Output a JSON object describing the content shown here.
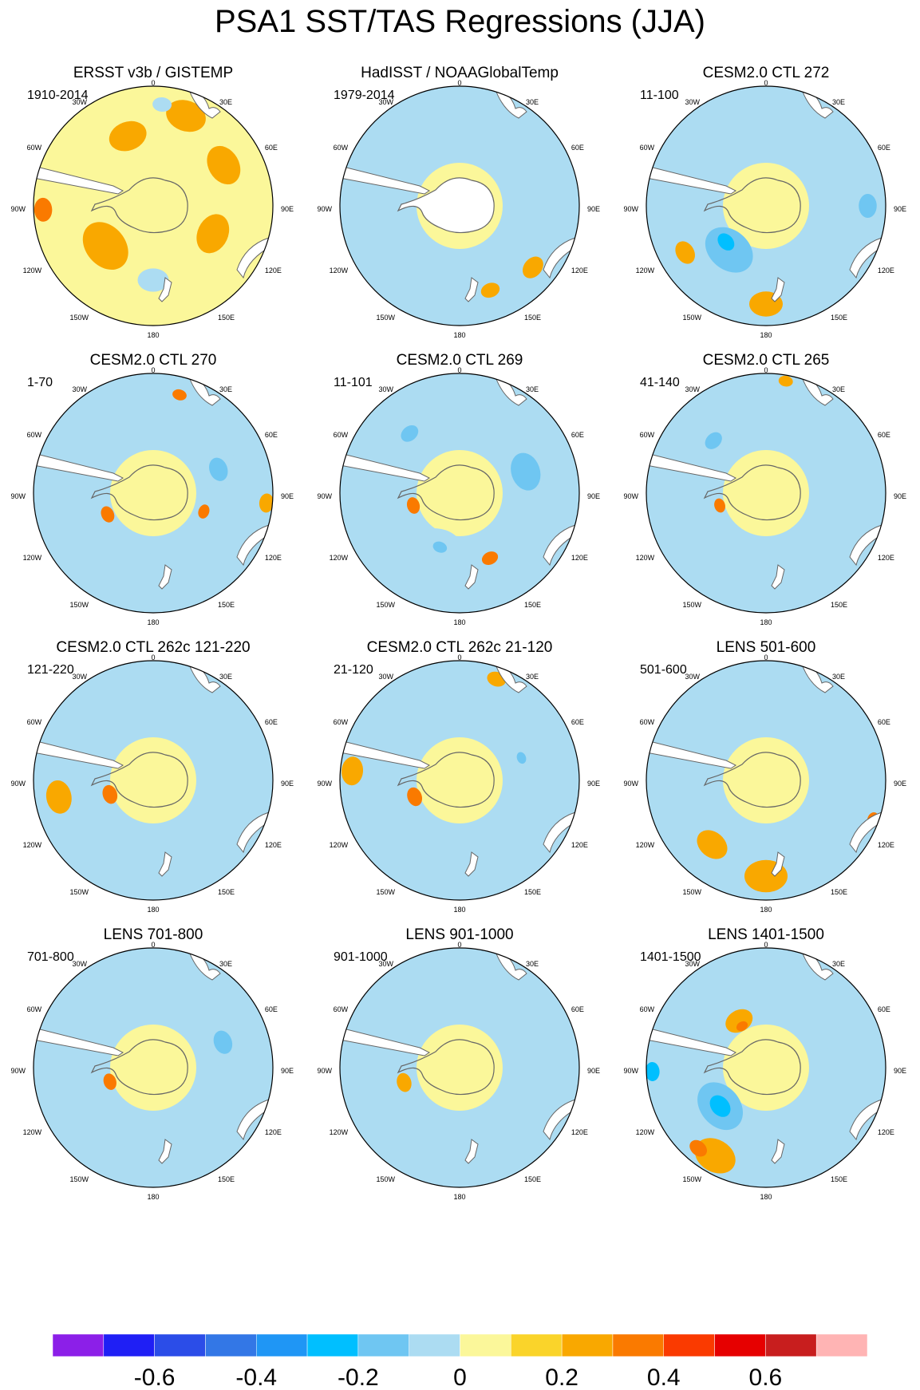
{
  "figure": {
    "title": "PSA1 SST/TAS Regressions (JJA)"
  },
  "chart_data": {
    "type": "heatmap",
    "projection": "south-polar-stereographic",
    "variable": "SST/TAS regression on PSA1 index",
    "season": "JJA",
    "longitude_labels": [
      "0",
      "30E",
      "60E",
      "90E",
      "120E",
      "150E",
      "180",
      "150W",
      "120W",
      "90W",
      "60W",
      "30W"
    ],
    "colorbar": {
      "tick_labels": [
        "-0.6",
        "-0.4",
        "-0.2",
        "0",
        "0.2",
        "0.4",
        "0.6"
      ],
      "tick_values": [
        -0.6,
        -0.4,
        -0.2,
        0,
        0.2,
        0.4,
        0.6
      ],
      "levels": [
        -0.7,
        -0.6,
        -0.5,
        -0.4,
        -0.3,
        -0.2,
        -0.1,
        0,
        0.1,
        0.2,
        0.3,
        0.4,
        0.5,
        0.6,
        0.7
      ],
      "colors": [
        "#8c1fe8",
        "#1f1ff5",
        "#2b4de8",
        "#3377e6",
        "#1f96f5",
        "#00bfff",
        "#6fc6f2",
        "#acdcf2",
        "#fbf79a",
        "#fad42a",
        "#f9a800",
        "#fa7a00",
        "#fa3a00",
        "#e60000",
        "#c81e1e",
        "#ffb4b4"
      ]
    },
    "panels": [
      {
        "title": "ERSST v3b / GISTEMP",
        "period": "1910-2014",
        "pattern": "warm",
        "masked_antarctica": false,
        "features": [
          {
            "lon": 20,
            "r": 0.8,
            "size": 0.17,
            "value": 0.2
          },
          {
            "lon": 60,
            "r": 0.68,
            "size": 0.17,
            "value": 0.2
          },
          {
            "lon": 115,
            "r": 0.55,
            "size": 0.17,
            "value": 0.2
          },
          {
            "lon": 230,
            "r": 0.52,
            "size": 0.22,
            "value": 0.2
          },
          {
            "lon": 268,
            "r": 0.92,
            "size": 0.1,
            "value": 0.3
          },
          {
            "lon": 340,
            "r": 0.62,
            "size": 0.16,
            "value": 0.2
          },
          {
            "lon": 180,
            "r": 0.62,
            "size": 0.13,
            "value": -0.1
          },
          {
            "lon": 5,
            "r": 0.85,
            "size": 0.08,
            "value": -0.1
          }
        ]
      },
      {
        "title": "HadISST / NOAAGlobalTemp",
        "period": "1979-2014",
        "pattern": "mixed",
        "masked_antarctica": true,
        "features": [
          {
            "lon": 350,
            "r": 0.6,
            "size": 0.2,
            "value": -0.1
          },
          {
            "lon": 40,
            "r": 0.55,
            "size": 0.18,
            "value": -0.1
          },
          {
            "lon": 100,
            "r": 0.72,
            "size": 0.18,
            "value": -0.1
          },
          {
            "lon": 200,
            "r": 0.7,
            "size": 0.2,
            "value": -0.1
          },
          {
            "lon": 260,
            "r": 0.72,
            "size": 0.18,
            "value": -0.1
          },
          {
            "lon": 130,
            "r": 0.8,
            "size": 0.1,
            "value": 0.2
          },
          {
            "lon": 160,
            "r": 0.75,
            "size": 0.08,
            "value": 0.2
          }
        ]
      },
      {
        "title": "CESM2.0 CTL 272",
        "period": "11-100",
        "pattern": "mixed",
        "features": [
          {
            "lon": 220,
            "r": 0.48,
            "size": 0.22,
            "value": -0.2
          },
          {
            "lon": 228,
            "r": 0.45,
            "size": 0.08,
            "value": -0.3
          },
          {
            "lon": 300,
            "r": 0.6,
            "size": 0.2,
            "value": -0.1
          },
          {
            "lon": 60,
            "r": 0.7,
            "size": 0.22,
            "value": -0.1
          },
          {
            "lon": 90,
            "r": 0.85,
            "size": 0.1,
            "value": -0.2
          },
          {
            "lon": 180,
            "r": 0.82,
            "size": 0.14,
            "value": 0.2
          },
          {
            "lon": 240,
            "r": 0.78,
            "size": 0.1,
            "value": 0.2
          }
        ]
      },
      {
        "title": "CESM2.0 CTL 270",
        "period": "1-70",
        "pattern": "mixed",
        "features": [
          {
            "lon": 70,
            "r": 0.58,
            "size": 0.22,
            "value": -0.1
          },
          {
            "lon": 70,
            "r": 0.58,
            "size": 0.1,
            "value": -0.2
          },
          {
            "lon": 320,
            "r": 0.7,
            "size": 0.18,
            "value": -0.1
          },
          {
            "lon": 200,
            "r": 0.6,
            "size": 0.22,
            "value": -0.1
          },
          {
            "lon": 245,
            "r": 0.42,
            "size": 0.07,
            "value": 0.3
          },
          {
            "lon": 110,
            "r": 0.45,
            "size": 0.06,
            "value": 0.3
          },
          {
            "lon": 95,
            "r": 0.95,
            "size": 0.08,
            "value": 0.2
          },
          {
            "lon": 15,
            "r": 0.85,
            "size": 0.06,
            "value": 0.3
          }
        ]
      },
      {
        "title": "CESM2.0 CTL 269",
        "period": "11-101",
        "pattern": "mixed",
        "features": [
          {
            "lon": 320,
            "r": 0.65,
            "size": 0.22,
            "value": -0.1
          },
          {
            "lon": 320,
            "r": 0.65,
            "size": 0.08,
            "value": -0.2
          },
          {
            "lon": 72,
            "r": 0.58,
            "size": 0.16,
            "value": -0.2
          },
          {
            "lon": 200,
            "r": 0.48,
            "size": 0.2,
            "value": -0.1
          },
          {
            "lon": 200,
            "r": 0.48,
            "size": 0.06,
            "value": -0.2
          },
          {
            "lon": 255,
            "r": 0.4,
            "size": 0.07,
            "value": 0.3
          },
          {
            "lon": 155,
            "r": 0.6,
            "size": 0.07,
            "value": 0.3
          }
        ]
      },
      {
        "title": "CESM2.0 CTL 265",
        "period": "41-140",
        "pattern": "mixed",
        "features": [
          {
            "lon": 315,
            "r": 0.62,
            "size": 0.22,
            "value": -0.1
          },
          {
            "lon": 315,
            "r": 0.62,
            "size": 0.08,
            "value": -0.2
          },
          {
            "lon": 70,
            "r": 0.52,
            "size": 0.12,
            "value": -0.1
          },
          {
            "lon": 200,
            "r": 0.5,
            "size": 0.18,
            "value": -0.1
          },
          {
            "lon": 255,
            "r": 0.4,
            "size": 0.06,
            "value": 0.3
          },
          {
            "lon": 10,
            "r": 0.95,
            "size": 0.06,
            "value": 0.2
          }
        ]
      },
      {
        "title": "CESM2.0 CTL 262c 121-220",
        "period": "121-220",
        "pattern": "mixed",
        "features": [
          {
            "lon": 320,
            "r": 0.65,
            "size": 0.22,
            "value": -0.1
          },
          {
            "lon": 75,
            "r": 0.55,
            "size": 0.16,
            "value": -0.1
          },
          {
            "lon": 200,
            "r": 0.55,
            "size": 0.2,
            "value": -0.1
          },
          {
            "lon": 252,
            "r": 0.38,
            "size": 0.08,
            "value": 0.3
          },
          {
            "lon": 260,
            "r": 0.8,
            "size": 0.14,
            "value": 0.2
          }
        ]
      },
      {
        "title": "CESM2.0 CTL 262c 21-120",
        "period": "21-120",
        "pattern": "mixed",
        "features": [
          {
            "lon": 330,
            "r": 0.65,
            "size": 0.22,
            "value": -0.1
          },
          {
            "lon": 70,
            "r": 0.55,
            "size": 0.14,
            "value": -0.1
          },
          {
            "lon": 70,
            "r": 0.55,
            "size": 0.05,
            "value": -0.2
          },
          {
            "lon": 200,
            "r": 0.7,
            "size": 0.22,
            "value": -0.1
          },
          {
            "lon": 250,
            "r": 0.4,
            "size": 0.08,
            "value": 0.3
          },
          {
            "lon": 275,
            "r": 0.9,
            "size": 0.12,
            "value": 0.2
          },
          {
            "lon": 20,
            "r": 0.9,
            "size": 0.08,
            "value": 0.2
          }
        ]
      },
      {
        "title": "LENS 501-600",
        "period": "501-600",
        "pattern": "mixed",
        "features": [
          {
            "lon": 300,
            "r": 0.6,
            "size": 0.22,
            "value": -0.1
          },
          {
            "lon": 50,
            "r": 0.62,
            "size": 0.22,
            "value": -0.1
          },
          {
            "lon": 180,
            "r": 0.8,
            "size": 0.18,
            "value": 0.2
          },
          {
            "lon": 220,
            "r": 0.7,
            "size": 0.14,
            "value": 0.2
          },
          {
            "lon": 110,
            "r": 0.95,
            "size": 0.06,
            "value": 0.3
          }
        ]
      },
      {
        "title": "LENS 701-800",
        "period": "701-800",
        "pattern": "mixed",
        "features": [
          {
            "lon": 70,
            "r": 0.62,
            "size": 0.22,
            "value": -0.1
          },
          {
            "lon": 70,
            "r": 0.62,
            "size": 0.1,
            "value": -0.2
          },
          {
            "lon": 320,
            "r": 0.65,
            "size": 0.2,
            "value": -0.1
          },
          {
            "lon": 200,
            "r": 0.55,
            "size": 0.2,
            "value": -0.1
          },
          {
            "lon": 252,
            "r": 0.38,
            "size": 0.07,
            "value": 0.3
          }
        ]
      },
      {
        "title": "LENS 901-1000",
        "period": "901-1000",
        "pattern": "mixed",
        "features": [
          {
            "lon": 320,
            "r": 0.65,
            "size": 0.22,
            "value": -0.1
          },
          {
            "lon": 70,
            "r": 0.55,
            "size": 0.16,
            "value": -0.1
          },
          {
            "lon": 200,
            "r": 0.6,
            "size": 0.2,
            "value": -0.1
          },
          {
            "lon": 255,
            "r": 0.48,
            "size": 0.08,
            "value": 0.2
          }
        ]
      },
      {
        "title": "LENS 1401-1500",
        "period": "1401-1500",
        "pattern": "mixed",
        "features": [
          {
            "lon": 230,
            "r": 0.5,
            "size": 0.22,
            "value": -0.2
          },
          {
            "lon": 230,
            "r": 0.5,
            "size": 0.1,
            "value": -0.3
          },
          {
            "lon": 268,
            "r": 0.95,
            "size": 0.08,
            "value": -0.3
          },
          {
            "lon": 210,
            "r": 0.85,
            "size": 0.18,
            "value": 0.2
          },
          {
            "lon": 220,
            "r": 0.88,
            "size": 0.08,
            "value": 0.3
          },
          {
            "lon": 330,
            "r": 0.45,
            "size": 0.12,
            "value": 0.2
          },
          {
            "lon": 330,
            "r": 0.4,
            "size": 0.05,
            "value": 0.3
          },
          {
            "lon": 60,
            "r": 0.65,
            "size": 0.2,
            "value": -0.1
          }
        ]
      }
    ]
  }
}
